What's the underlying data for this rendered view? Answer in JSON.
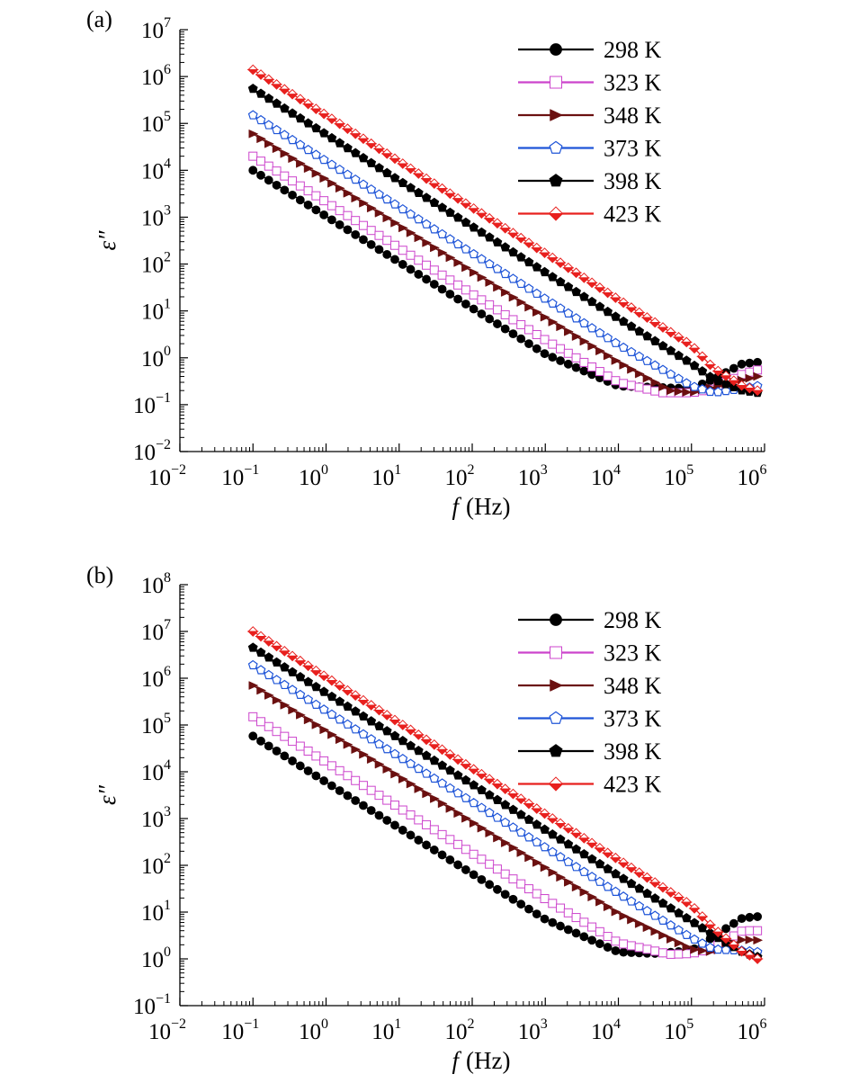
{
  "chart_data": [
    {
      "type": "scatter",
      "panel_label": "(a)",
      "xlabel": "f",
      "xlabel_unit": "(Hz)",
      "ylabel": "ε″",
      "x_scale": "log",
      "y_scale": "log",
      "xlim": [
        0.01,
        1000000
      ],
      "ylim": [
        0.01,
        10000000
      ],
      "x_ticks": [
        {
          "base": "10",
          "exp": "−2"
        },
        {
          "base": "10",
          "exp": "−1"
        },
        {
          "base": "10",
          "exp": "0"
        },
        {
          "base": "10",
          "exp": "1"
        },
        {
          "base": "10",
          "exp": "2"
        },
        {
          "base": "10",
          "exp": "3"
        },
        {
          "base": "10",
          "exp": "4"
        },
        {
          "base": "10",
          "exp": "5"
        },
        {
          "base": "10",
          "exp": "6"
        }
      ],
      "y_ticks": [
        {
          "base": "10",
          "exp": "−2"
        },
        {
          "base": "10",
          "exp": "−1"
        },
        {
          "base": "10",
          "exp": "0"
        },
        {
          "base": "10",
          "exp": "1"
        },
        {
          "base": "10",
          "exp": "2"
        },
        {
          "base": "10",
          "exp": "3"
        },
        {
          "base": "10",
          "exp": "4"
        },
        {
          "base": "10",
          "exp": "5"
        },
        {
          "base": "10",
          "exp": "6"
        },
        {
          "base": "10",
          "exp": "7"
        }
      ],
      "legend_position": "top-right",
      "series": [
        {
          "name": "298 K",
          "color": "#000000",
          "marker": "filled-circle",
          "x": [
            0.1,
            1,
            10,
            100,
            1000,
            10000,
            100000,
            200000,
            500000,
            800000
          ],
          "y": [
            10000,
            1050,
            110,
            11.5,
            1.2,
            0.25,
            0.22,
            0.35,
            0.75,
            0.8
          ]
        },
        {
          "name": "323 K",
          "color": "#cc44cc",
          "marker": "open-square",
          "x": [
            0.1,
            1,
            10,
            100,
            1000,
            10000,
            40000,
            100000,
            200000,
            500000,
            800000
          ],
          "y": [
            20000,
            2100,
            220,
            23,
            2.4,
            0.3,
            0.18,
            0.18,
            0.22,
            0.45,
            0.55
          ]
        },
        {
          "name": "348 K",
          "color": "#6b1010",
          "marker": "right-triangle",
          "x": [
            0.1,
            1,
            10,
            100,
            1000,
            10000,
            50000,
            100000,
            300000,
            800000
          ],
          "y": [
            60000,
            6300,
            660,
            69,
            7.2,
            0.8,
            0.2,
            0.18,
            0.28,
            0.4
          ]
        },
        {
          "name": "373 K",
          "color": "#1f55d8",
          "marker": "open-pentagon",
          "x": [
            0.1,
            1,
            10,
            100,
            1000,
            10000,
            100000,
            200000,
            500000,
            800000
          ],
          "y": [
            150000,
            15700,
            1650,
            170,
            18,
            1.9,
            0.25,
            0.18,
            0.22,
            0.25
          ]
        },
        {
          "name": "398 K",
          "color": "#000000",
          "marker": "filled-pentagon",
          "x": [
            0.1,
            1,
            10,
            100,
            1000,
            10000,
            100000,
            200000,
            500000,
            800000
          ],
          "y": [
            550000,
            58000,
            6000,
            630,
            66,
            6.9,
            0.75,
            0.35,
            0.2,
            0.18
          ]
        },
        {
          "name": "423 K",
          "color": "#e8201e",
          "marker": "split-diamond",
          "x": [
            0.1,
            1,
            10,
            100,
            1000,
            10000,
            100000,
            200000,
            500000,
            800000
          ],
          "y": [
            1400000,
            150000,
            15500,
            1600,
            170,
            17.5,
            1.85,
            0.6,
            0.25,
            0.2
          ]
        }
      ]
    },
    {
      "type": "scatter",
      "panel_label": "(b)",
      "xlabel": "f",
      "xlabel_unit": "(Hz)",
      "ylabel": "ε″",
      "x_scale": "log",
      "y_scale": "log",
      "xlim": [
        0.01,
        1000000
      ],
      "ylim": [
        0.1,
        100000000
      ],
      "x_ticks": [
        {
          "base": "10",
          "exp": "−2"
        },
        {
          "base": "10",
          "exp": "−1"
        },
        {
          "base": "10",
          "exp": "0"
        },
        {
          "base": "10",
          "exp": "1"
        },
        {
          "base": "10",
          "exp": "2"
        },
        {
          "base": "10",
          "exp": "3"
        },
        {
          "base": "10",
          "exp": "4"
        },
        {
          "base": "10",
          "exp": "5"
        },
        {
          "base": "10",
          "exp": "6"
        }
      ],
      "y_ticks": [
        {
          "base": "10",
          "exp": "−1"
        },
        {
          "base": "10",
          "exp": "0"
        },
        {
          "base": "10",
          "exp": "1"
        },
        {
          "base": "10",
          "exp": "2"
        },
        {
          "base": "10",
          "exp": "3"
        },
        {
          "base": "10",
          "exp": "4"
        },
        {
          "base": "10",
          "exp": "5"
        },
        {
          "base": "10",
          "exp": "6"
        },
        {
          "base": "10",
          "exp": "7"
        },
        {
          "base": "10",
          "exp": "8"
        }
      ],
      "legend_position": "top-right",
      "series": [
        {
          "name": "298 K",
          "color": "#000000",
          "marker": "filled-circle",
          "x": [
            0.1,
            1,
            10,
            100,
            1000,
            10000,
            30000,
            100000,
            200000,
            500000,
            800000
          ],
          "y": [
            58000,
            6000,
            630,
            66,
            7,
            1.4,
            1.3,
            1.5,
            3,
            7.5,
            8
          ]
        },
        {
          "name": "323 K",
          "color": "#cc44cc",
          "marker": "open-square",
          "x": [
            0.1,
            1,
            10,
            100,
            1000,
            10000,
            50000,
            100000,
            200000,
            500000,
            800000
          ],
          "y": [
            150000,
            16000,
            1700,
            180,
            19,
            2.2,
            1.25,
            1.3,
            1.7,
            4,
            4
          ]
        },
        {
          "name": "348 K",
          "color": "#6b1010",
          "marker": "right-triangle",
          "x": [
            0.1,
            1,
            10,
            100,
            1000,
            10000,
            100000,
            200000,
            500000,
            800000
          ],
          "y": [
            700000,
            74000,
            7800,
            830,
            88,
            9.3,
            1.6,
            1.4,
            2.6,
            2.5
          ]
        },
        {
          "name": "373 K",
          "color": "#1f55d8",
          "marker": "open-pentagon",
          "x": [
            0.1,
            1,
            10,
            100,
            1000,
            10000,
            100000,
            200000,
            500000,
            800000
          ],
          "y": [
            1900000,
            200000,
            21000,
            2250,
            240,
            25,
            2.8,
            1.6,
            1.5,
            1.4
          ]
        },
        {
          "name": "398 K",
          "color": "#000000",
          "marker": "filled-pentagon",
          "x": [
            0.1,
            1,
            10,
            100,
            1000,
            10000,
            100000,
            200000,
            500000,
            800000
          ],
          "y": [
            4500000,
            480000,
            51000,
            5400,
            570,
            60,
            6.4,
            3.2,
            1.4,
            1.1
          ]
        },
        {
          "name": "423 K",
          "color": "#e8201e",
          "marker": "split-diamond",
          "x": [
            0.1,
            1,
            10,
            100,
            1000,
            10000,
            100000,
            200000,
            500000,
            800000
          ],
          "y": [
            10000000,
            1060000,
            112000,
            11800,
            1250,
            132,
            14,
            4.5,
            1.4,
            1
          ]
        }
      ]
    }
  ]
}
